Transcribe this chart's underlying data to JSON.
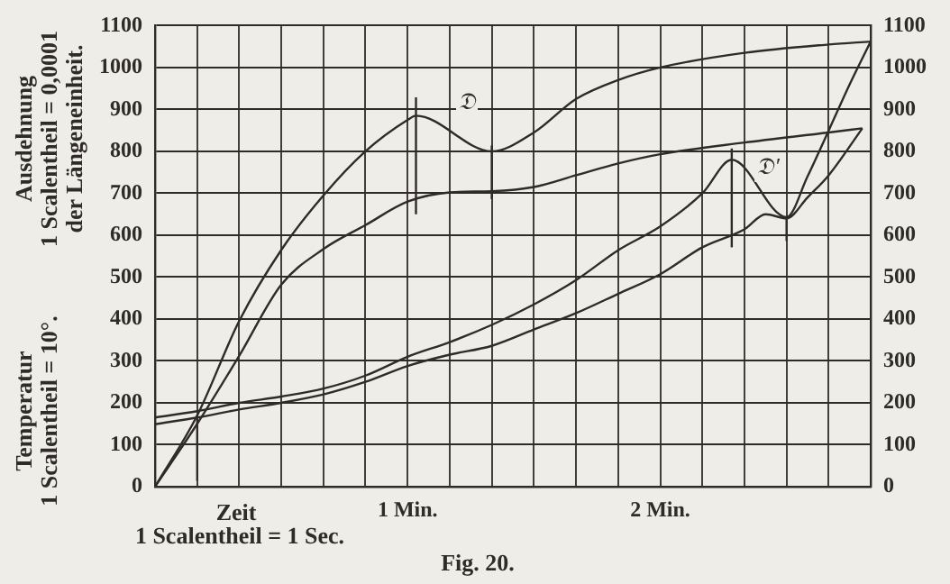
{
  "chart_data": {
    "type": "line",
    "xlabel": "Zeit",
    "ylabel": "Ausdehnung\n1 Scalentheil = 0,0001\nder Längeneinheit.",
    "annotations": [
      "Temperatur\n1 Scalentheil = 10°.",
      "1 Scalentheil = 1 Sec.",
      "Fig. 20.",
      "𝔇",
      "𝔇′"
    ],
    "xlim": [
      0,
      2.833
    ],
    "xticks": [
      {
        "value": 0,
        "label": null
      },
      {
        "value": 0.167,
        "label": null
      },
      {
        "value": 0.333,
        "label": null
      },
      {
        "value": 0.5,
        "label": null
      },
      {
        "value": 0.667,
        "label": null
      },
      {
        "value": 0.833,
        "label": null
      },
      {
        "value": 1,
        "label": "1 Min."
      },
      {
        "value": 1.167,
        "label": null
      },
      {
        "value": 1.333,
        "label": null
      },
      {
        "value": 1.5,
        "label": null
      },
      {
        "value": 1.667,
        "label": null
      },
      {
        "value": 1.833,
        "label": null
      },
      {
        "value": 2,
        "label": "2 Min."
      },
      {
        "value": 2.167,
        "label": null
      },
      {
        "value": 2.333,
        "label": null
      },
      {
        "value": 2.5,
        "label": null
      },
      {
        "value": 2.667,
        "label": null
      },
      {
        "value": 2.833,
        "label": null
      }
    ],
    "ylim": [
      0,
      1100
    ],
    "yticks": [
      0,
      100,
      200,
      300,
      400,
      500,
      600,
      700,
      800,
      900,
      1000,
      1100
    ],
    "y2lim": [
      0,
      1100
    ],
    "y2ticks": [
      0,
      100,
      200,
      300,
      400,
      500,
      600,
      700,
      800,
      900,
      1000,
      1100
    ],
    "grid": true,
    "marker": "none",
    "line_style": "solid",
    "series": [
      {
        "color": "#2e2b28",
        "x": [
          0,
          0.167,
          0.333,
          0.5,
          0.667,
          0.833,
          1,
          1.033,
          1.333,
          1.5,
          1.667,
          1.833,
          2,
          2.333,
          2.667,
          2.833
        ],
        "values": [
          0,
          170,
          395,
          565,
          695,
          800,
          875,
          885,
          800,
          845,
          925,
          970,
          1000,
          1035,
          1055,
          1062
        ]
      },
      {
        "color": "#2e2b28",
        "x": [
          0,
          0.167,
          0.333,
          0.5,
          0.667,
          0.833,
          1,
          1.167,
          1.333,
          1.5,
          1.667,
          1.833,
          2,
          2.333,
          2.667,
          2.8
        ],
        "values": [
          0,
          150,
          312,
          482,
          567,
          624,
          680,
          702,
          705,
          715,
          743,
          771,
          793,
          821,
          845,
          855
        ]
      },
      {
        "color": "#2e2b28",
        "x": [
          0,
          0.167,
          0.333,
          0.5,
          0.667,
          0.833,
          1,
          1.167,
          1.333,
          1.5,
          1.667,
          1.833,
          2,
          2.167,
          2.283,
          2.5,
          2.583,
          2.667,
          2.75,
          2.833
        ],
        "values": [
          165,
          180,
          200,
          215,
          234,
          265,
          310,
          345,
          386,
          435,
          493,
          564,
          621,
          700,
          780,
          643,
          740,
          850,
          960,
          1062
        ]
      },
      {
        "color": "#2e2b28",
        "x": [
          0,
          0.167,
          0.333,
          0.5,
          0.667,
          0.833,
          1,
          1.167,
          1.333,
          1.5,
          1.667,
          1.833,
          2,
          2.167,
          2.333,
          2.417,
          2.5,
          2.583,
          2.667,
          2.8
        ],
        "values": [
          149,
          165,
          184,
          200,
          220,
          250,
          288,
          315,
          336,
          375,
          414,
          460,
          507,
          571,
          614,
          650,
          640,
          690,
          743,
          855
        ]
      },
      {
        "color": "#2e2b28",
        "x": [
          0.167,
          0.167
        ],
        "values": [
          14,
          171
        ]
      },
      {
        "color": "#2e2b28",
        "x": [
          1.033,
          1.033
        ],
        "values": [
          650,
          929
        ]
      },
      {
        "color": "#2e2b28",
        "x": [
          1.333,
          1.333
        ],
        "values": [
          686,
          814
        ]
      },
      {
        "color": "#2e2b28",
        "x": [
          2.283,
          2.283
        ],
        "values": [
          571,
          807
        ]
      },
      {
        "color": "#2e2b28",
        "x": [
          2.5,
          2.5
        ],
        "values": [
          586,
          643
        ]
      }
    ]
  }
}
